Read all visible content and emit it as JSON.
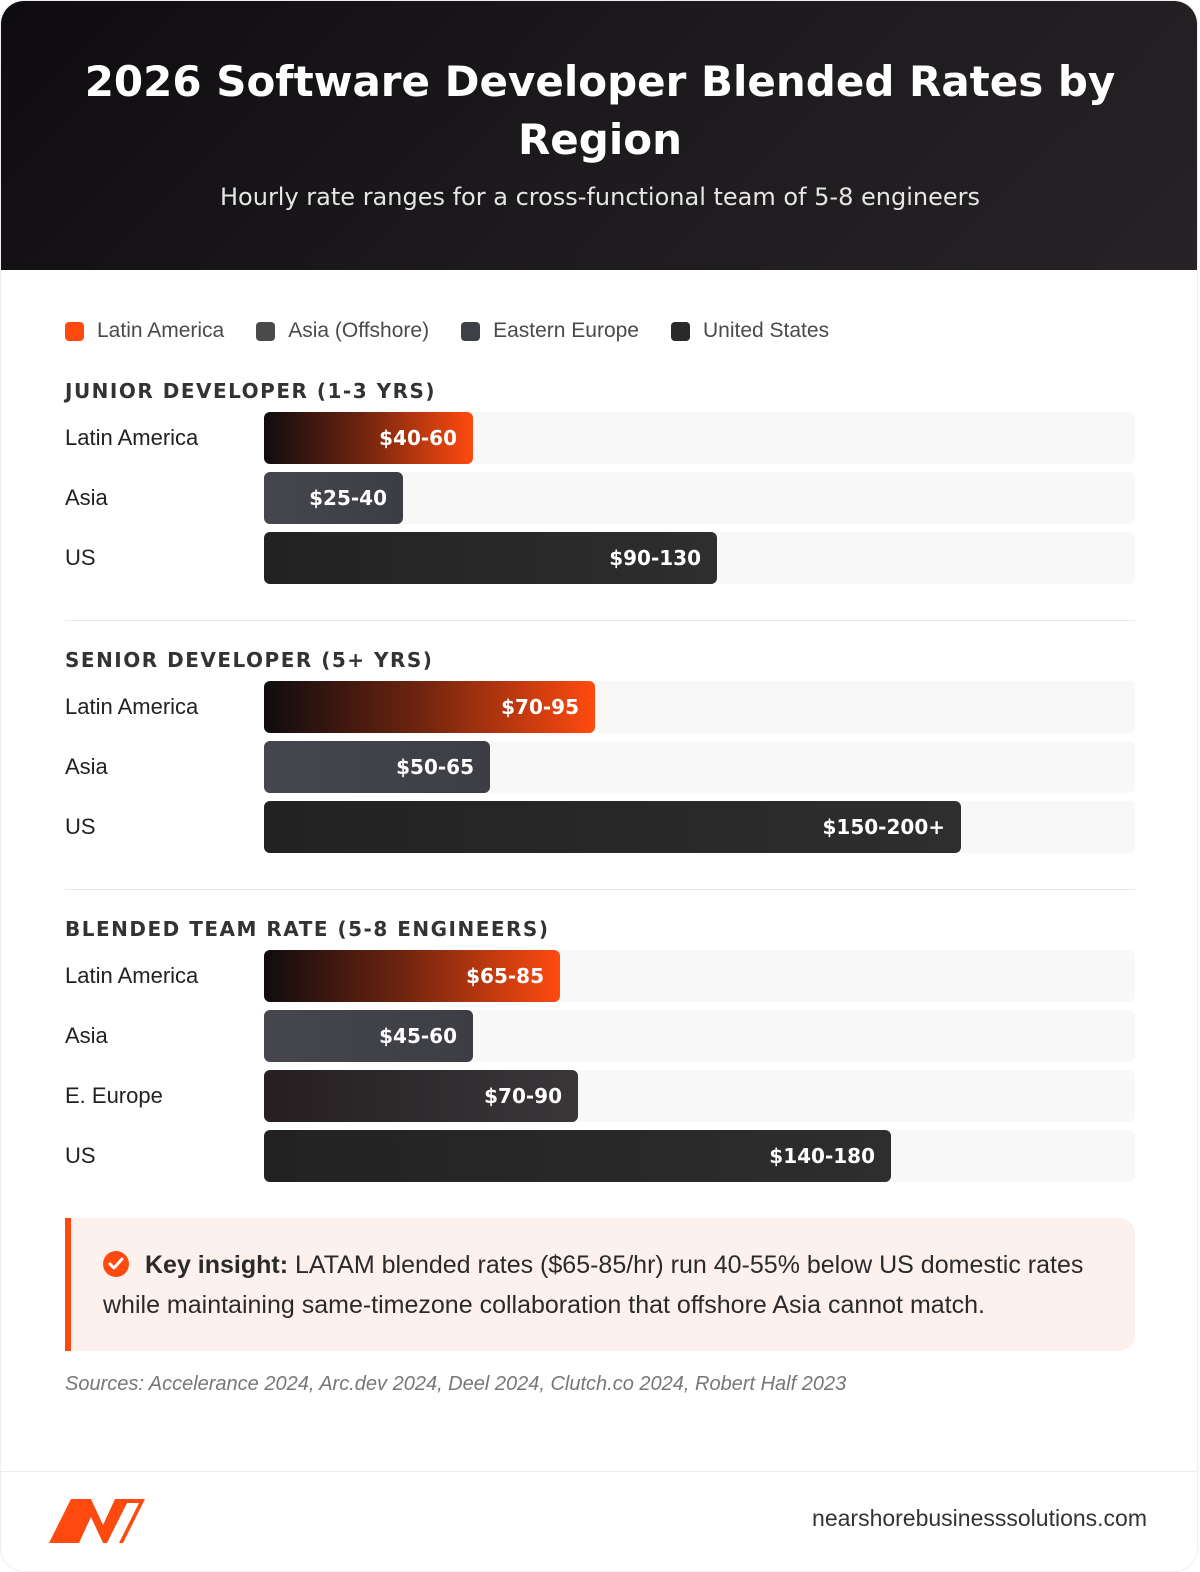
{
  "header": {
    "title": "2026 Software Developer Blended Rates by Region",
    "subtitle": "Hourly rate ranges for a cross-functional team of 5-8 engineers"
  },
  "legend": [
    {
      "label": "Latin America",
      "color": "#ff4a0f"
    },
    {
      "label": "Asia (Offshore)",
      "color": "#4a4a4a"
    },
    {
      "label": "Eastern Europe",
      "color": "#3d4045"
    },
    {
      "label": "United States",
      "color": "#2a2a2a"
    }
  ],
  "chart_data": {
    "type": "bar",
    "orientation": "horizontal",
    "unit": "$ per hour",
    "groups": [
      {
        "title": "JUNIOR DEVELOPER (1-3 YRS)",
        "rows": [
          {
            "label": "Latin America",
            "value_label": "$40-60",
            "min": 40,
            "max": 60,
            "style": "latam"
          },
          {
            "label": "Asia",
            "value_label": "$25-40",
            "min": 25,
            "max": 40,
            "style": "asia"
          },
          {
            "label": "US",
            "value_label": "$90-130",
            "min": 90,
            "max": 130,
            "style": "us"
          }
        ]
      },
      {
        "title": "SENIOR DEVELOPER (5+ YRS)",
        "rows": [
          {
            "label": "Latin America",
            "value_label": "$70-95",
            "min": 70,
            "max": 95,
            "style": "latam"
          },
          {
            "label": "Asia",
            "value_label": "$50-65",
            "min": 50,
            "max": 65,
            "style": "asia"
          },
          {
            "label": "US",
            "value_label": "$150-200+",
            "min": 150,
            "max": 200,
            "style": "us"
          }
        ]
      },
      {
        "title": "BLENDED TEAM RATE (5-8 ENGINEERS)",
        "rows": [
          {
            "label": "Latin America",
            "value_label": "$65-85",
            "min": 65,
            "max": 85,
            "style": "latam"
          },
          {
            "label": "Asia",
            "value_label": "$45-60",
            "min": 45,
            "max": 60,
            "style": "asia"
          },
          {
            "label": "E. Europe",
            "value_label": "$70-90",
            "min": 70,
            "max": 90,
            "style": "ee"
          },
          {
            "label": "US",
            "value_label": "$140-180",
            "min": 140,
            "max": 180,
            "style": "us"
          }
        ]
      }
    ],
    "scale_max": 250
  },
  "insight": {
    "lead": "Key insight:",
    "text": " LATAM blended rates ($65-85/hr) run 40-55% below US domestic rates while maintaining same-timezone collaboration that offshore Asia cannot match.",
    "icon": "check-circle-icon",
    "accent": "#ff4a0f"
  },
  "sources": "Sources: Accelerance 2024, Arc.dev 2024, Deel 2024, Clutch.co 2024, Robert Half 2023",
  "footer": {
    "site": "nearshorebusinesssolutions.com",
    "logo_icon": "brand-logo-icon",
    "logo_color": "#ff4a0f"
  }
}
